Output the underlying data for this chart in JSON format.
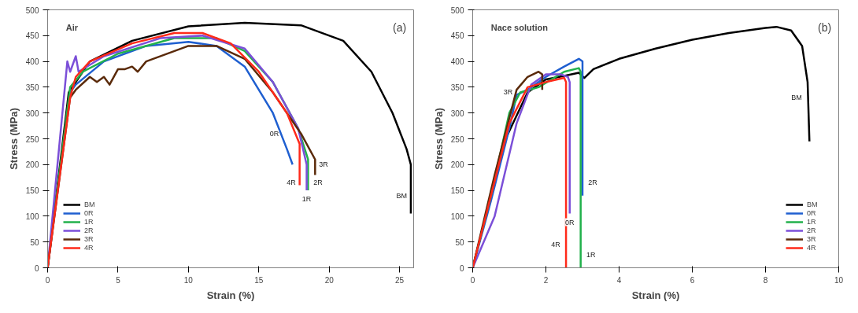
{
  "chart_data": [
    {
      "type": "line",
      "xlabel": "Strain (%)",
      "ylabel": "Stress (MPa)",
      "xlim": [
        0,
        26
      ],
      "xticks": [
        0,
        5,
        10,
        15,
        20,
        25
      ],
      "ylim": [
        0,
        500
      ],
      "yticks": [
        0,
        50,
        100,
        150,
        200,
        250,
        300,
        350,
        400,
        450,
        500
      ],
      "grid": false,
      "legend": "bottom left",
      "marker": "none",
      "line_style": "solid",
      "annotations": [
        "Air",
        "(a)",
        {
          "text": "0R",
          "x": 16.7,
          "y": 260
        },
        {
          "text": "3R",
          "x": 19,
          "y": 200
        },
        {
          "text": "2R",
          "x": 18.6,
          "y": 165
        },
        {
          "text": "1R",
          "x": 18.4,
          "y": 150
        },
        {
          "text": "4R",
          "x": 17.9,
          "y": 165
        },
        {
          "text": "BM",
          "x": 25.8,
          "y": 140
        }
      ],
      "series": [
        {
          "name": "BM",
          "color": "#000000",
          "x": [
            0,
            1.5,
            3,
            6,
            10,
            14,
            18,
            21,
            23,
            24.5,
            25.5,
            25.8,
            25.8
          ],
          "values": [
            0,
            340,
            400,
            440,
            468,
            475,
            470,
            440,
            380,
            300,
            230,
            200,
            105
          ]
        },
        {
          "name": "0R",
          "color": "#1f5fd0",
          "x": [
            0,
            1.6,
            2,
            4,
            7,
            10,
            12,
            14,
            16,
            17,
            17.4
          ],
          "values": [
            0,
            340,
            355,
            400,
            430,
            438,
            430,
            390,
            300,
            230,
            200
          ]
        },
        {
          "name": "1R",
          "color": "#22b14c",
          "x": [
            0,
            1.6,
            2.5,
            5,
            9,
            12,
            14,
            16,
            17.8,
            18.5,
            18.5
          ],
          "values": [
            0,
            350,
            380,
            415,
            445,
            445,
            420,
            360,
            270,
            210,
            150
          ]
        },
        {
          "name": "2R",
          "color": "#7b4fd8",
          "x": [
            0,
            1.4,
            1.6,
            2,
            2.2,
            4,
            8,
            11,
            14,
            16,
            17.8,
            18.4,
            18.4
          ],
          "values": [
            0,
            400,
            380,
            410,
            380,
            410,
            445,
            450,
            425,
            360,
            270,
            200,
            150
          ]
        },
        {
          "name": "3R",
          "color": "#5a2a0a",
          "x": [
            0,
            1.6,
            2,
            3,
            3.5,
            4,
            4.4,
            5,
            5.5,
            6,
            6.4,
            7,
            10,
            12,
            14,
            16,
            18,
            19,
            19
          ],
          "values": [
            0,
            330,
            345,
            370,
            360,
            370,
            355,
            385,
            385,
            390,
            380,
            400,
            430,
            430,
            405,
            340,
            260,
            210,
            180
          ]
        },
        {
          "name": "4R",
          "color": "#ff2a1a",
          "x": [
            0,
            1.6,
            2,
            3,
            6,
            9,
            11,
            13,
            15,
            17,
            17.9,
            17.9
          ],
          "values": [
            0,
            330,
            370,
            400,
            435,
            455,
            455,
            435,
            380,
            300,
            240,
            160
          ]
        }
      ]
    },
    {
      "type": "line",
      "xlabel": "Strain (%)",
      "ylabel": "Stress (MPa)",
      "xlim": [
        0,
        10
      ],
      "xticks": [
        0,
        2,
        4,
        6,
        8,
        10
      ],
      "ylim": [
        0,
        500
      ],
      "yticks": [
        0,
        50,
        100,
        150,
        200,
        250,
        300,
        350,
        400,
        450,
        500
      ],
      "grid": false,
      "legend": "bottom right",
      "marker": "none",
      "line_style": "solid",
      "annotations": [
        "Nace solution",
        "(b)",
        {
          "text": "3R",
          "x": 1.2,
          "y": 340
        },
        {
          "text": "BM",
          "x": 9.1,
          "y": 330
        },
        {
          "text": "2R",
          "x": 3.05,
          "y": 165
        },
        {
          "text": "0R",
          "x": 2.65,
          "y": 105
        },
        {
          "text": "4R",
          "x": 2.5,
          "y": 45
        },
        {
          "text": "1R",
          "x": 3,
          "y": 25
        }
      ],
      "series": [
        {
          "name": "BM",
          "color": "#000000",
          "x": [
            0,
            0.9,
            1.5,
            2,
            2.5,
            2.9,
            3.05,
            3.3,
            4,
            5,
            6,
            7,
            8,
            8.3,
            8.7,
            9,
            9.15,
            9.2
          ],
          "values": [
            0,
            250,
            340,
            365,
            372,
            378,
            368,
            385,
            405,
            425,
            442,
            455,
            465,
            467,
            460,
            430,
            360,
            245
          ]
        },
        {
          "name": "0R",
          "color": "#1f5fd0",
          "x": [
            0,
            0.5,
            1,
            1.2,
            1.5,
            2,
            2.5,
            2.9,
            3,
            3
          ],
          "values": [
            0,
            130,
            270,
            335,
            345,
            370,
            390,
            405,
            400,
            140
          ]
        },
        {
          "name": "1R",
          "color": "#22b14c",
          "x": [
            0,
            0.5,
            1,
            1.3,
            1.8,
            2.5,
            2.9,
            2.95,
            2.95
          ],
          "values": [
            0,
            140,
            300,
            340,
            350,
            380,
            387,
            380,
            0
          ]
        },
        {
          "name": "2R",
          "color": "#7b4fd8",
          "x": [
            0,
            0.6,
            1.2,
            1.6,
            2,
            2.4,
            2.6,
            2.65,
            2.65
          ],
          "values": [
            0,
            100,
            280,
            355,
            375,
            375,
            370,
            360,
            105
          ]
        },
        {
          "name": "3R",
          "color": "#5a2a0a",
          "x": [
            0,
            0.6,
            1.2,
            1.5,
            1.8,
            1.9,
            1.9
          ],
          "values": [
            0,
            180,
            345,
            370,
            380,
            375,
            345
          ]
        },
        {
          "name": "4R",
          "color": "#ff2a1a",
          "x": [
            0,
            0.5,
            1,
            1.5,
            2,
            2.5,
            2.55,
            2.55
          ],
          "values": [
            0,
            140,
            280,
            350,
            360,
            368,
            360,
            0
          ]
        }
      ]
    }
  ]
}
